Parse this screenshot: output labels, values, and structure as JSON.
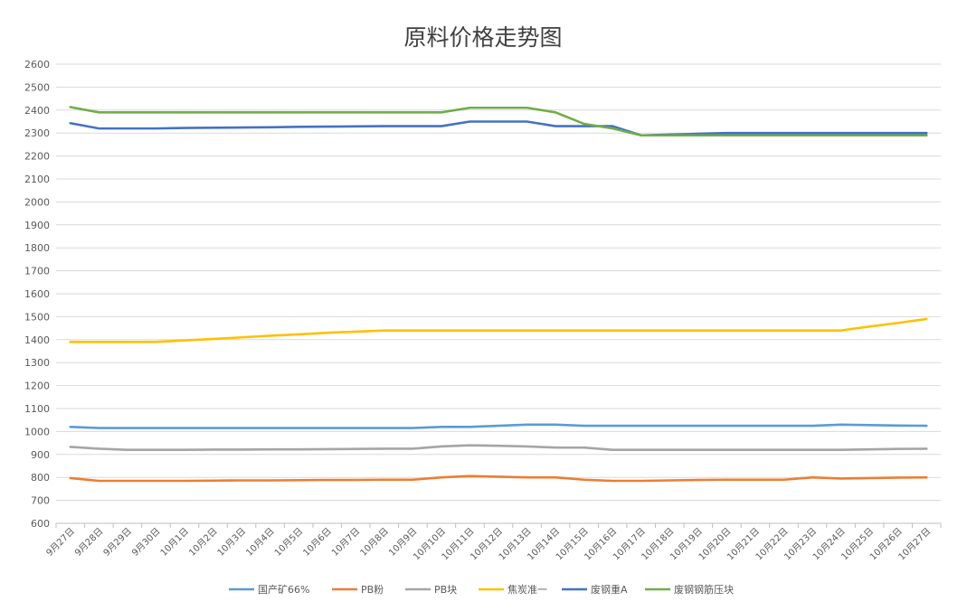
{
  "chart_data": {
    "type": "line",
    "title": "原料价格走势图",
    "xlabel": "",
    "ylabel": "",
    "ylim": [
      600,
      2600
    ],
    "ytick_step": 100,
    "grid": true,
    "legend_position": "bottom",
    "categories": [
      "9月27日",
      "9月28日",
      "9月29日",
      "9月30日",
      "10月1日",
      "10月2日",
      "10月3日",
      "10月4日",
      "10月5日",
      "10月6日",
      "10月7日",
      "10月8日",
      "10月9日",
      "10月10日",
      "10月11日",
      "10月12日",
      "10月13日",
      "10月14日",
      "10月15日",
      "10月16日",
      "10月17日",
      "10月18日",
      "10月19日",
      "10月20日",
      "10月21日",
      "10月22日",
      "10月23日",
      "10月24日",
      "10月25日",
      "10月26日",
      "10月27日"
    ],
    "series": [
      {
        "name": "国产矿66%",
        "color": "#5B9BD5",
        "values": [
          1020,
          1015,
          1015,
          1015,
          1015,
          1015,
          1015,
          1015,
          1015,
          1015,
          1015,
          1015,
          1015,
          1020,
          1020,
          1025,
          1030,
          1030,
          1025,
          1025,
          1025,
          1025,
          1025,
          1025,
          1025,
          1025,
          1025,
          1030,
          1028,
          1026,
          1025
        ]
      },
      {
        "name": "PB粉",
        "color": "#ED7D31",
        "values": [
          797,
          785,
          785,
          785,
          785,
          786,
          787,
          787,
          788,
          789,
          789,
          790,
          790,
          800,
          806,
          803,
          800,
          800,
          790,
          785,
          785,
          787,
          789,
          790,
          790,
          790,
          800,
          795,
          797,
          799,
          800
        ]
      },
      {
        "name": "PB块",
        "color": "#A5A5A5",
        "values": [
          933,
          925,
          920,
          920,
          920,
          921,
          921,
          922,
          922,
          923,
          924,
          925,
          925,
          935,
          940,
          938,
          935,
          930,
          930,
          920,
          920,
          920,
          920,
          920,
          920,
          920,
          920,
          920,
          922,
          924,
          925
        ]
      },
      {
        "name": "焦炭准一",
        "color": "#FFC000",
        "values": [
          1390,
          1390,
          1390,
          1390,
          1397,
          1403,
          1410,
          1417,
          1423,
          1430,
          1435,
          1440,
          1440,
          1440,
          1440,
          1440,
          1440,
          1440,
          1440,
          1440,
          1440,
          1440,
          1440,
          1440,
          1440,
          1440,
          1440,
          1440,
          1457,
          1473,
          1490
        ]
      },
      {
        "name": "废钢重A",
        "color": "#4472C4",
        "values": [
          2343,
          2320,
          2320,
          2320,
          2322,
          2323,
          2324,
          2325,
          2327,
          2328,
          2329,
          2330,
          2330,
          2330,
          2350,
          2350,
          2350,
          2330,
          2330,
          2330,
          2290,
          2293,
          2297,
          2300,
          2300,
          2300,
          2300,
          2300,
          2300,
          2300,
          2300
        ]
      },
      {
        "name": "废钢钢筋压块",
        "color": "#70AD47",
        "values": [
          2413,
          2390,
          2390,
          2390,
          2390,
          2390,
          2390,
          2390,
          2390,
          2390,
          2390,
          2390,
          2390,
          2390,
          2410,
          2410,
          2410,
          2390,
          2340,
          2320,
          2290,
          2290,
          2290,
          2290,
          2290,
          2290,
          2290,
          2290,
          2290,
          2290,
          2290
        ]
      }
    ]
  }
}
